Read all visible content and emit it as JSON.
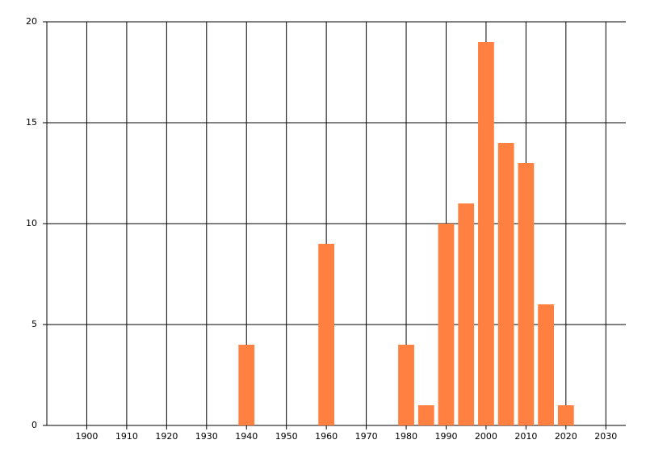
{
  "chart_data": {
    "type": "bar",
    "x": [
      1940,
      1960,
      1980,
      1985,
      1990,
      1995,
      2000,
      2005,
      2010,
      2015,
      2020
    ],
    "values": [
      4,
      9,
      4,
      1,
      10,
      11,
      19,
      14,
      13,
      6,
      1
    ],
    "color": "#ff8040",
    "xlim": [
      1890,
      2035
    ],
    "xticks": [
      1900,
      1910,
      1920,
      1930,
      1940,
      1950,
      1960,
      1970,
      1980,
      1990,
      2000,
      2010,
      2020,
      2030
    ],
    "ylim": [
      0,
      20
    ],
    "yticks": [
      0,
      5,
      10,
      15,
      20
    ],
    "grid": true
  }
}
